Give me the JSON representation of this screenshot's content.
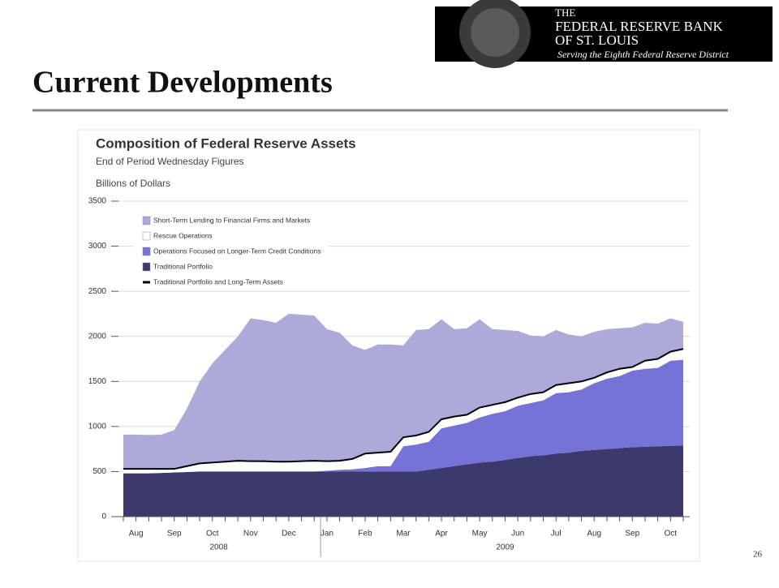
{
  "slide": {
    "title": "Current Developments",
    "page_number": "26",
    "logo": {
      "line1": "THE",
      "line2": "FEDERAL RESERVE BANK",
      "line3": "OF ST. LOUIS",
      "tagline": "Serving the Eighth Federal Reserve District"
    }
  },
  "chart_data": {
    "type": "area",
    "stacked": true,
    "title": "Composition of Federal Reserve Assets",
    "subtitle": "End of Period Wednesday Figures",
    "y_label": "Billions of Dollars",
    "categories": [
      null,
      "Aug",
      null,
      null,
      "Sep",
      null,
      null,
      "Oct",
      null,
      null,
      "Nov",
      null,
      null,
      "Dec",
      null,
      null,
      "Jan",
      null,
      null,
      "Feb",
      null,
      null,
      "Mar",
      null,
      null,
      "Apr",
      null,
      null,
      "May",
      null,
      null,
      "Jun",
      null,
      null,
      "Jul",
      null,
      null,
      "Aug",
      null,
      null,
      "Sep",
      null,
      null,
      "Oct",
      null
    ],
    "years": [
      "2008",
      "2009"
    ],
    "ylim": [
      0,
      3500
    ],
    "yticks": [
      0,
      500,
      1000,
      1500,
      2000,
      2500,
      3000,
      3500
    ],
    "grid": true,
    "series": [
      {
        "name": "Short-Term Lending to Financial Firms and Markets",
        "kind": "area",
        "color": "#abaad8",
        "values": [
          380,
          380,
          375,
          380,
          430,
          640,
          910,
          1100,
          1240,
          1380,
          1585,
          1565,
          1540,
          1640,
          1625,
          1610,
          1465,
          1420,
          1260,
          1150,
          1200,
          1190,
          1020,
          1170,
          1140,
          1110,
          970,
          960,
          980,
          840,
          800,
          740,
          650,
          620,
          610,
          540,
          500,
          510,
          480,
          450,
          440,
          420,
          390,
          370,
          300
        ]
      },
      {
        "name": "Rescue Operations",
        "kind": "area",
        "color": "#ffffff",
        "values": [
          50,
          50,
          50,
          45,
          40,
          65,
          90,
          100,
          110,
          120,
          115,
          115,
          110,
          110,
          115,
          120,
          105,
          100,
          115,
          160,
          150,
          160,
          100,
          100,
          110,
          100,
          100,
          90,
          110,
          100,
          100,
          90,
          100,
          90,
          90,
          100,
          90,
          60,
          70,
          80,
          40,
          90,
          100,
          100,
          120
        ]
      },
      {
        "name": "Operations Focused on Longer-Term Credit Conditions",
        "kind": "area",
        "color": "#7573d8",
        "values": [
          0,
          0,
          0,
          0,
          0,
          0,
          0,
          0,
          0,
          0,
          0,
          0,
          0,
          0,
          0,
          0,
          10,
          20,
          25,
          40,
          60,
          60,
          280,
          300,
          310,
          440,
          450,
          460,
          500,
          530,
          540,
          580,
          590,
          610,
          670,
          670,
          680,
          740,
          780,
          800,
          850,
          865,
          870,
          945,
          950
        ]
      },
      {
        "name": "Traditional Portfolio",
        "kind": "area",
        "color": "#3c3a6c",
        "values": [
          480,
          480,
          480,
          485,
          490,
          495,
          500,
          500,
          500,
          500,
          500,
          500,
          500,
          500,
          500,
          500,
          500,
          500,
          500,
          500,
          500,
          500,
          500,
          500,
          520,
          540,
          560,
          580,
          600,
          610,
          630,
          650,
          670,
          680,
          700,
          710,
          730,
          740,
          750,
          760,
          770,
          775,
          780,
          785,
          790
        ]
      },
      {
        "name": "Traditional Portfolio and Long-Term Assets",
        "kind": "line",
        "color": "#000000",
        "values": [
          530,
          530,
          530,
          530,
          530,
          560,
          590,
          600,
          610,
          620,
          615,
          615,
          610,
          610,
          615,
          620,
          615,
          620,
          640,
          700,
          710,
          720,
          880,
          900,
          940,
          1080,
          1110,
          1130,
          1210,
          1240,
          1270,
          1320,
          1360,
          1380,
          1460,
          1480,
          1500,
          1540,
          1600,
          1640,
          1660,
          1730,
          1750,
          1830,
          1860
        ]
      }
    ]
  }
}
